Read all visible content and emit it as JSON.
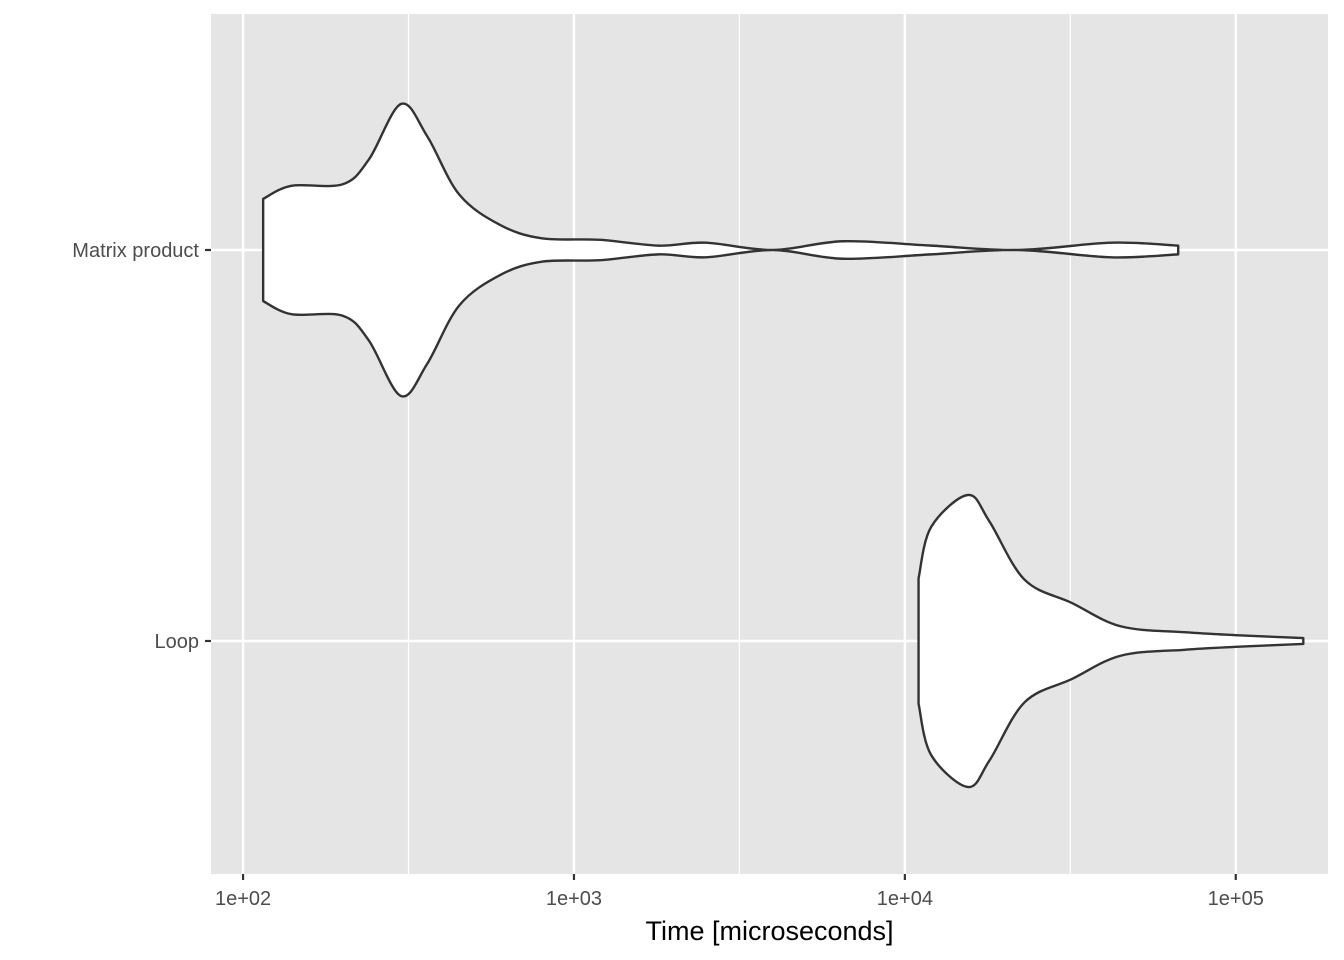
{
  "chart_data": {
    "type": "violin",
    "orientation": "horizontal",
    "title": "",
    "xlabel": "Time [microseconds]",
    "ylabel": "",
    "x_scale": "log10",
    "xlim": [
      80,
      190000
    ],
    "x_ticks": [
      {
        "value": 100,
        "label": "1e+02"
      },
      {
        "value": 1000,
        "label": "1e+03"
      },
      {
        "value": 10000,
        "label": "1e+04"
      },
      {
        "value": 100000,
        "label": "1e+05"
      }
    ],
    "categories": [
      "Matrix product",
      "Loop"
    ],
    "grid": true,
    "legend": "none",
    "colors": {
      "panel_background": "#e5e5e5",
      "grid_line": "#ffffff",
      "violin_fill": "#ffffff",
      "violin_outline": "#333333",
      "tick_label": "#4d4d4d",
      "axis_title": "#000000"
    },
    "series": [
      {
        "category": "Matrix product",
        "density_profile": [
          [
            115,
            0.35
          ],
          [
            140,
            0.44
          ],
          [
            200,
            0.45
          ],
          [
            240,
            0.62
          ],
          [
            300,
            1.0
          ],
          [
            360,
            0.78
          ],
          [
            450,
            0.38
          ],
          [
            600,
            0.17
          ],
          [
            800,
            0.08
          ],
          [
            1200,
            0.07
          ],
          [
            1800,
            0.03
          ],
          [
            2500,
            0.05
          ],
          [
            4000,
            0.0
          ],
          [
            6500,
            0.06
          ],
          [
            12000,
            0.03
          ],
          [
            22000,
            0.0
          ],
          [
            42000,
            0.05
          ],
          [
            67000,
            0.03
          ]
        ]
      },
      {
        "category": "Loop",
        "density_profile": [
          [
            11000,
            0.43
          ],
          [
            12000,
            0.78
          ],
          [
            15500,
            1.0
          ],
          [
            18000,
            0.82
          ],
          [
            23000,
            0.42
          ],
          [
            32000,
            0.26
          ],
          [
            45000,
            0.1
          ],
          [
            70000,
            0.06
          ],
          [
            100000,
            0.04
          ],
          [
            160000,
            0.02
          ]
        ]
      }
    ]
  }
}
